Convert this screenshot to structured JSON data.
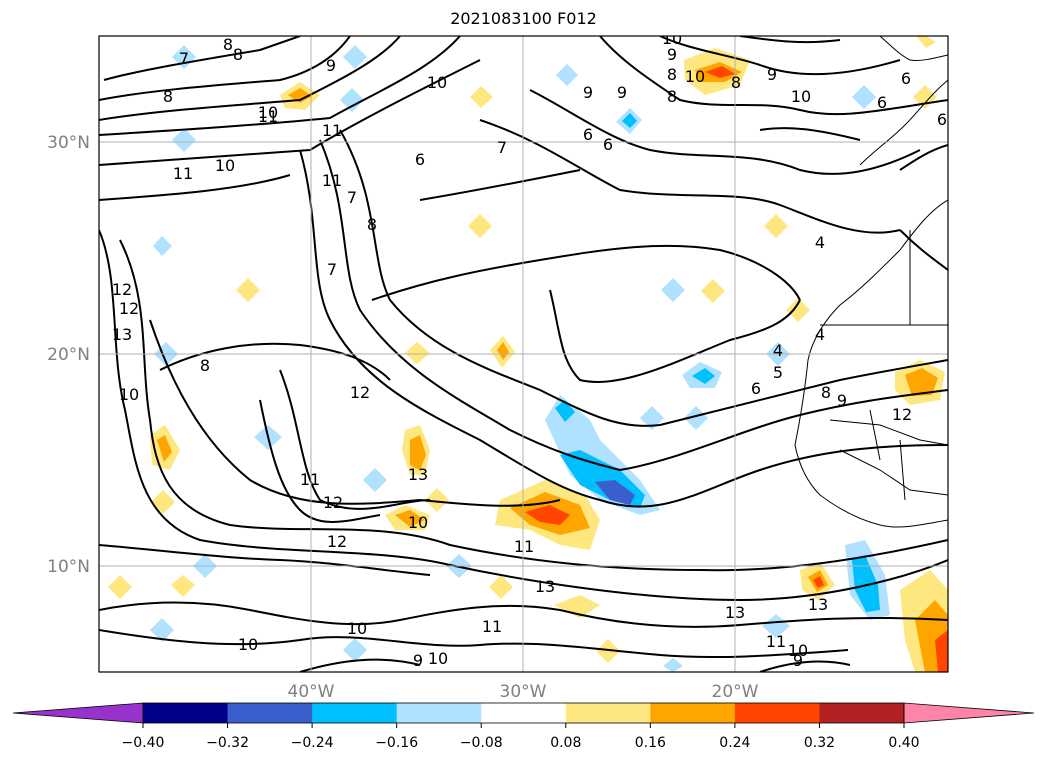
{
  "title": "2021083100 F012",
  "map": {
    "lat_labels": [
      "30°N",
      "20°N",
      "10°N"
    ],
    "lon_labels": [
      "40°W",
      "30°W",
      "20°W"
    ],
    "grid": true,
    "axis_label_color": "#808080"
  },
  "colorbar": {
    "colors": [
      "#9932cc",
      "#00008b",
      "#3a5fcd",
      "#00bfff",
      "#b0e2ff",
      "#ffffff",
      "#ffe780",
      "#ffa500",
      "#ff4500",
      "#b22222",
      "#ff85a8"
    ],
    "tick_labels": [
      "−0.40",
      "−0.32",
      "−0.24",
      "−0.16",
      "−0.08",
      "0.08",
      "0.16",
      "0.24",
      "0.32",
      "0.40"
    ]
  },
  "contour_labels": [
    {
      "text": "7"
    },
    {
      "text": "8"
    },
    {
      "text": "9"
    },
    {
      "text": "10"
    },
    {
      "text": "10"
    },
    {
      "text": "11"
    },
    {
      "text": "11"
    },
    {
      "text": "11"
    },
    {
      "text": "10"
    },
    {
      "text": "11"
    },
    {
      "text": "8"
    },
    {
      "text": "7"
    },
    {
      "text": "7"
    },
    {
      "text": "8"
    },
    {
      "text": "6"
    },
    {
      "text": "10"
    },
    {
      "text": "9"
    },
    {
      "text": "9"
    },
    {
      "text": "7"
    },
    {
      "text": "6"
    },
    {
      "text": "6"
    },
    {
      "text": "8"
    },
    {
      "text": "6"
    },
    {
      "text": "10"
    },
    {
      "text": "8"
    },
    {
      "text": "9"
    },
    {
      "text": "8"
    },
    {
      "text": "9"
    },
    {
      "text": "10"
    },
    {
      "text": "6"
    },
    {
      "text": "6"
    },
    {
      "text": "4"
    },
    {
      "text": "4"
    },
    {
      "text": "4"
    },
    {
      "text": "5"
    },
    {
      "text": "6"
    },
    {
      "text": "8"
    },
    {
      "text": "9"
    },
    {
      "text": "12"
    },
    {
      "text": "13"
    },
    {
      "text": "12"
    },
    {
      "text": "10"
    },
    {
      "text": "8"
    },
    {
      "text": "12"
    },
    {
      "text": "13"
    },
    {
      "text": "11"
    },
    {
      "text": "12"
    },
    {
      "text": "10"
    },
    {
      "text": "12"
    },
    {
      "text": "11"
    },
    {
      "text": "13"
    },
    {
      "text": "13"
    },
    {
      "text": "13"
    },
    {
      "text": "11"
    },
    {
      "text": "10"
    },
    {
      "text": "9"
    },
    {
      "text": "10"
    },
    {
      "text": "10"
    },
    {
      "text": "11"
    },
    {
      "text": "9"
    },
    {
      "text": "10"
    },
    {
      "text": "8"
    },
    {
      "text": "12"
    }
  ]
}
